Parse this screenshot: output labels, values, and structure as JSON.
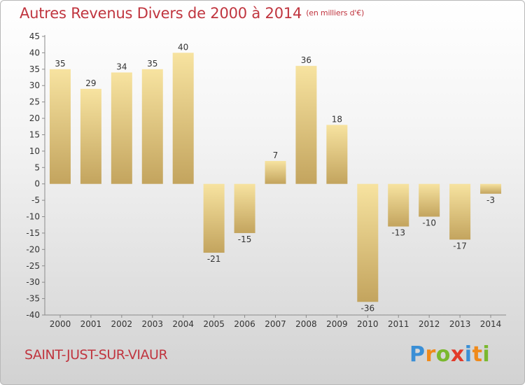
{
  "title": "Autres Revenus Divers de 2000 à 2014",
  "title_unit": "(en milliers d'€)",
  "footer_label": "SAINT-JUST-SUR-VIAUR",
  "logo": {
    "letters": [
      "P",
      "r",
      "o",
      "x",
      "i",
      "t",
      "i"
    ],
    "colors": [
      "#3a8fd6",
      "#f08a1a",
      "#7ab82e",
      "#e23a2a",
      "#3a8fd6",
      "#f08a1a",
      "#7ab82e"
    ]
  },
  "chart_data": {
    "type": "bar",
    "title": "Autres Revenus Divers de 2000 à 2014",
    "subtitle": "(en milliers d'€)",
    "categories": [
      "2000",
      "2001",
      "2002",
      "2003",
      "2004",
      "2005",
      "2006",
      "2007",
      "2008",
      "2009",
      "2010",
      "2011",
      "2012",
      "2013",
      "2014"
    ],
    "values": [
      35,
      29,
      34,
      35,
      40,
      -21,
      -15,
      7,
      36,
      18,
      -36,
      -13,
      -10,
      -17,
      -3
    ],
    "value_labels": [
      "35",
      "29",
      "34",
      "35",
      "40",
      "-21",
      "-15",
      "7",
      "36",
      "18",
      "-36",
      "-13",
      "-10",
      "-17",
      "-3"
    ],
    "ylim": [
      -40,
      45
    ],
    "yticks": [
      45,
      40,
      35,
      30,
      25,
      20,
      15,
      10,
      5,
      0,
      -5,
      -10,
      -15,
      -20,
      -25,
      -30,
      -35,
      -40
    ],
    "grid": false,
    "bar_color_light": "#f7e3a0",
    "bar_color_dark": "#c3a45e",
    "axis_color": "#8a8a8a"
  }
}
